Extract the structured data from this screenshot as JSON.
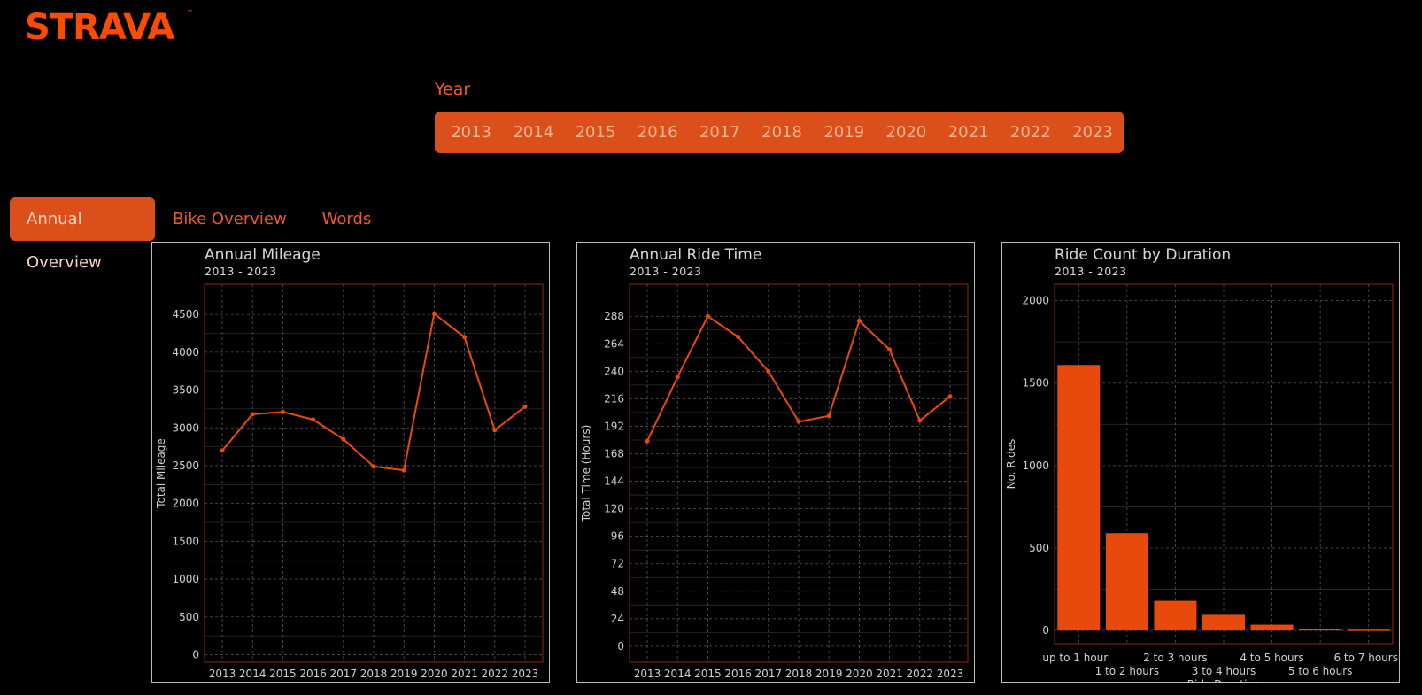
{
  "app": {
    "logo_text": "STRAVA",
    "brand_color": "#fc4c02"
  },
  "filters": {
    "year_label": "Year",
    "years": [
      "2013",
      "2014",
      "2015",
      "2016",
      "2017",
      "2018",
      "2019",
      "2020",
      "2021",
      "2022",
      "2023"
    ]
  },
  "tabs": [
    {
      "label": "Annual Overview",
      "active": true
    },
    {
      "label": "Bike Overview",
      "active": false
    },
    {
      "label": "Words",
      "active": false
    }
  ],
  "chart_data": [
    {
      "type": "line",
      "title": "Annual Mileage",
      "subtitle": "2013 - 2023",
      "xlabel": "",
      "ylabel": "Total Mileage",
      "x": [
        "2013",
        "2014",
        "2015",
        "2016",
        "2017",
        "2018",
        "2019",
        "2020",
        "2021",
        "2022",
        "2023"
      ],
      "values": [
        2700,
        3180,
        3210,
        3110,
        2850,
        2490,
        2440,
        4510,
        4200,
        2970,
        3280
      ],
      "yticks": [
        0,
        500,
        1000,
        1500,
        2000,
        2500,
        3000,
        3500,
        4000,
        4500
      ],
      "ylim": [
        -100,
        4900
      ],
      "grid": true,
      "color": "#e84a0c"
    },
    {
      "type": "line",
      "title": "Annual Ride Time",
      "subtitle": "2013 - 2023",
      "xlabel": "",
      "ylabel": "Total Time (Hours)",
      "x": [
        "2013",
        "2014",
        "2015",
        "2016",
        "2017",
        "2018",
        "2019",
        "2020",
        "2021",
        "2022",
        "2023"
      ],
      "values": [
        179,
        235,
        288,
        270,
        240,
        196,
        201,
        284,
        259,
        197,
        218
      ],
      "yticks": [
        0,
        24,
        48,
        72,
        96,
        120,
        144,
        168,
        192,
        216,
        240,
        264,
        288
      ],
      "ylim": [
        -14,
        316
      ],
      "grid": true,
      "color": "#e84a0c"
    },
    {
      "type": "bar",
      "title": "Ride Count by Duration",
      "subtitle": "2013 - 2023",
      "xlabel": "Ride Duration",
      "ylabel": "No. Rides",
      "categories": [
        "up to 1 hour",
        "1 to 2 hours",
        "2 to 3 hours",
        "3 to 4 hours",
        "4 to 5 hours",
        "5 to 6 hours",
        "6 to 7 hours"
      ],
      "values": [
        1610,
        590,
        180,
        95,
        35,
        8,
        5
      ],
      "yticks": [
        0,
        500,
        1000,
        1500,
        2000
      ],
      "ylim": [
        -80,
        2100
      ],
      "grid": true,
      "color": "#e84a0c"
    }
  ]
}
